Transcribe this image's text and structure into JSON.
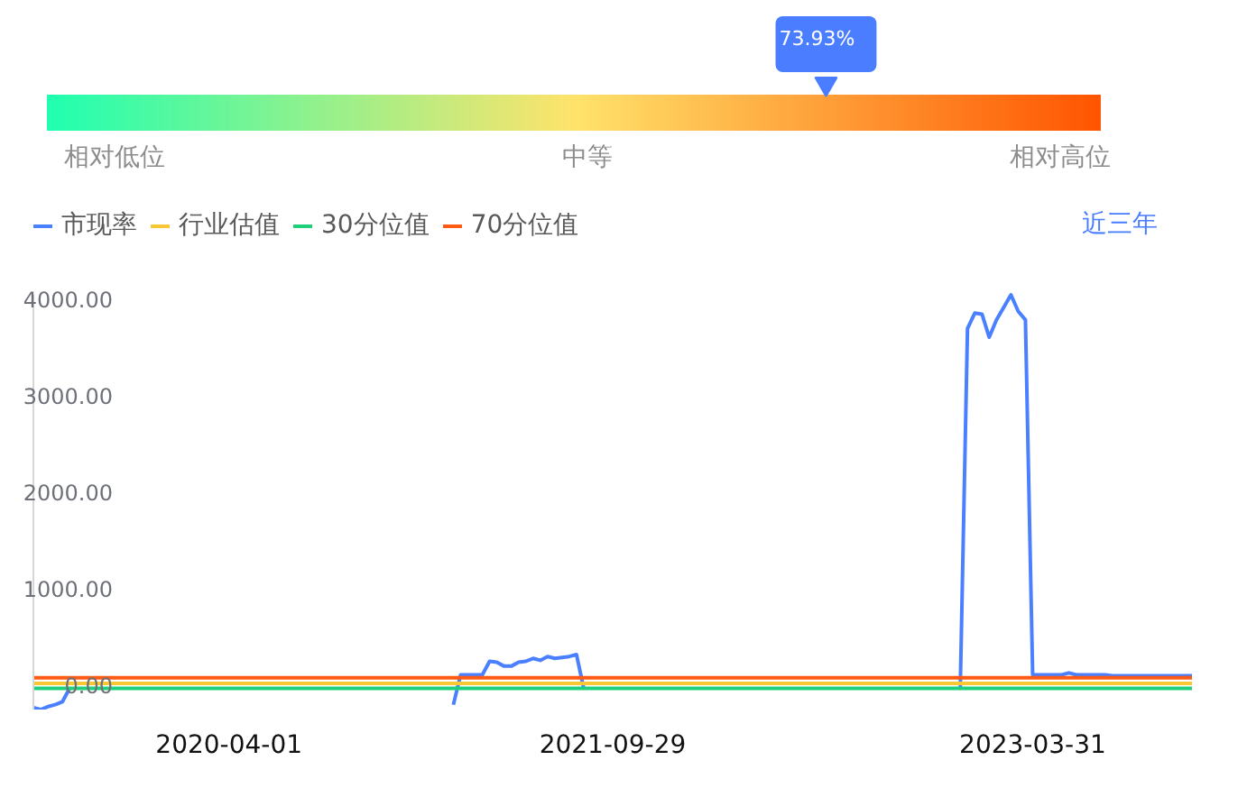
{
  "chart_data": [
    {
      "type": "other",
      "values": [
        73.93
      ],
      "value_labels": [
        "73.93%"
      ],
      "color": "#4a7dff",
      "annotations": [
        "相对低位",
        "中等",
        "相对高位"
      ]
    },
    {
      "type": "line",
      "categories": [
        null,
        null,
        null,
        null,
        null,
        null,
        null,
        null,
        null,
        null,
        null,
        null,
        null,
        null,
        null,
        null,
        null,
        null,
        null,
        null,
        null,
        null,
        null,
        null,
        null,
        null,
        null,
        "2020-04-01",
        null,
        null,
        null,
        null,
        null,
        null,
        null,
        null,
        null,
        null,
        null,
        null,
        null,
        null,
        null,
        null,
        null,
        null,
        null,
        null,
        null,
        null,
        null,
        null,
        null,
        null,
        null,
        null,
        null,
        null,
        null,
        null,
        null,
        null,
        null,
        null,
        null,
        null,
        null,
        null,
        null,
        null,
        null,
        null,
        null,
        null,
        null,
        null,
        null,
        null,
        null,
        null,
        "2021-09-29",
        null,
        null,
        null,
        null,
        null,
        null,
        null,
        null,
        null,
        null,
        null,
        null,
        null,
        null,
        null,
        null,
        null,
        null,
        null,
        null,
        null,
        null,
        null,
        null,
        null,
        null,
        null,
        null,
        null,
        null,
        null,
        null,
        null,
        null,
        null,
        null,
        null,
        null,
        null,
        null,
        null,
        null,
        null,
        null,
        null,
        null,
        null,
        null,
        null,
        null,
        null,
        null,
        null,
        null,
        null,
        null,
        null,
        "2023-03-31",
        null,
        null,
        null,
        null,
        null,
        null,
        null,
        null,
        null,
        null,
        null,
        null,
        null,
        null,
        null,
        null,
        null,
        null,
        null,
        null,
        null,
        null
      ],
      "series": [
        {
          "name": "市现率",
          "color": "#4a80ff",
          "values": [
            -230,
            -250,
            -220,
            -200,
            -170,
            -30,
            null,
            null,
            null,
            null,
            null,
            null,
            null,
            null,
            null,
            null,
            null,
            null,
            null,
            null,
            null,
            null,
            null,
            null,
            null,
            null,
            null,
            null,
            null,
            null,
            null,
            null,
            null,
            null,
            null,
            null,
            null,
            null,
            null,
            null,
            null,
            null,
            null,
            null,
            null,
            null,
            null,
            null,
            null,
            null,
            null,
            null,
            null,
            null,
            null,
            null,
            null,
            null,
            -200,
            110,
            110,
            110,
            110,
            250,
            240,
            200,
            200,
            240,
            250,
            280,
            260,
            300,
            280,
            290,
            300,
            320,
            -30,
            null,
            null,
            null,
            null,
            null,
            null,
            null,
            null,
            null,
            null,
            null,
            null,
            null,
            null,
            null,
            null,
            null,
            null,
            null,
            null,
            null,
            null,
            null,
            null,
            null,
            null,
            null,
            null,
            null,
            null,
            null,
            null,
            null,
            null,
            null,
            null,
            null,
            null,
            null,
            null,
            null,
            null,
            null,
            null,
            null,
            null,
            null,
            null,
            null,
            null,
            null,
            -30,
            3700,
            3860,
            3850,
            3610,
            3790,
            3920,
            4050,
            3880,
            3790,
            110,
            110,
            110,
            110,
            110,
            130,
            110,
            110,
            110,
            110,
            110,
            100,
            100,
            100,
            100,
            100,
            100,
            100,
            100,
            100,
            100,
            100,
            100
          ]
        },
        {
          "name": "行业估值",
          "color": "#f8c834",
          "values": [
            20,
            20,
            20,
            20,
            20,
            20,
            20,
            20,
            20,
            20,
            20,
            20,
            20,
            20,
            20,
            20,
            20,
            20,
            20,
            20,
            20,
            20,
            20,
            20,
            20,
            20,
            20,
            20,
            20,
            20,
            20,
            20,
            20,
            20,
            20,
            20,
            20,
            20,
            20,
            20,
            20,
            20,
            20,
            20,
            20,
            20,
            20,
            20,
            20,
            20,
            20,
            20,
            20,
            20,
            20,
            20,
            20,
            20,
            20,
            20,
            20,
            20,
            20,
            20,
            20,
            20,
            20,
            20,
            20,
            20,
            20,
            20,
            20,
            20,
            20,
            20,
            20,
            20,
            20,
            20,
            20,
            20,
            20,
            20,
            20,
            20,
            20,
            20,
            20,
            20,
            20,
            20,
            20,
            20,
            20,
            20,
            20,
            20,
            20,
            20,
            20,
            20,
            20,
            20,
            20,
            20,
            20,
            20,
            20,
            20,
            20,
            20,
            20,
            20,
            20,
            20,
            20,
            20,
            20,
            20,
            20,
            20,
            20,
            20,
            20,
            20,
            20,
            20,
            20,
            20,
            20,
            20,
            20,
            20,
            20,
            20,
            20,
            20,
            20,
            20,
            20,
            20,
            20,
            20,
            20,
            20,
            20,
            20,
            20,
            20,
            20,
            20,
            20,
            20,
            20,
            20,
            20,
            20,
            20,
            20,
            20
          ]
        },
        {
          "name": "30分位值",
          "color": "#1fd07a",
          "values": [
            -30,
            -30,
            -30,
            -30,
            -30,
            -30,
            -30,
            -30,
            -30,
            -30,
            -30,
            -30,
            -30,
            -30,
            -30,
            -30,
            -30,
            -30,
            -30,
            -30,
            -30,
            -30,
            -30,
            -30,
            -30,
            -30,
            -30,
            -30,
            -30,
            -30,
            -30,
            -30,
            -30,
            -30,
            -30,
            -30,
            -30,
            -30,
            -30,
            -30,
            -30,
            -30,
            -30,
            -30,
            -30,
            -30,
            -30,
            -30,
            -30,
            -30,
            -30,
            -30,
            -30,
            -30,
            -30,
            -30,
            -30,
            -30,
            -30,
            -30,
            -30,
            -30,
            -30,
            -30,
            -30,
            -30,
            -30,
            -30,
            -30,
            -30,
            -30,
            -30,
            -30,
            -30,
            -30,
            -30,
            -30,
            -30,
            -30,
            -30,
            -30,
            -30,
            -30,
            -30,
            -30,
            -30,
            -30,
            -30,
            -30,
            -30,
            -30,
            -30,
            -30,
            -30,
            -30,
            -30,
            -30,
            -30,
            -30,
            -30,
            -30,
            -30,
            -30,
            -30,
            -30,
            -30,
            -30,
            -30,
            -30,
            -30,
            -30,
            -30,
            -30,
            -30,
            -30,
            -30,
            -30,
            -30,
            -30,
            -30,
            -30,
            -30,
            -30,
            -30,
            -30,
            -30,
            -30,
            -30,
            -30,
            -30,
            -30,
            -30,
            -30,
            -30,
            -30,
            -30,
            -30,
            -30,
            -30,
            -30,
            -30,
            -30,
            -30,
            -30,
            -30,
            -30,
            -30,
            -30,
            -30,
            -30,
            -30,
            -30,
            -30,
            -30,
            -30,
            -30,
            -30,
            -30,
            -30,
            -30,
            -30
          ]
        },
        {
          "name": "70分位值",
          "color": "#ff5a14",
          "values": [
            80,
            80,
            80,
            80,
            80,
            80,
            80,
            80,
            80,
            80,
            80,
            80,
            80,
            80,
            80,
            80,
            80,
            80,
            80,
            80,
            80,
            80,
            80,
            80,
            80,
            80,
            80,
            80,
            80,
            80,
            80,
            80,
            80,
            80,
            80,
            80,
            80,
            80,
            80,
            80,
            80,
            80,
            80,
            80,
            80,
            80,
            80,
            80,
            80,
            80,
            80,
            80,
            80,
            80,
            80,
            80,
            80,
            80,
            80,
            80,
            80,
            80,
            80,
            80,
            80,
            80,
            80,
            80,
            80,
            80,
            80,
            80,
            80,
            80,
            80,
            80,
            80,
            80,
            80,
            80,
            80,
            80,
            80,
            80,
            80,
            80,
            80,
            80,
            80,
            80,
            80,
            80,
            80,
            80,
            80,
            80,
            80,
            80,
            80,
            80,
            80,
            80,
            80,
            80,
            80,
            80,
            80,
            80,
            80,
            80,
            80,
            80,
            80,
            80,
            80,
            80,
            80,
            80,
            80,
            80,
            80,
            80,
            80,
            80,
            80,
            80,
            80,
            80,
            80,
            80,
            80,
            80,
            80,
            80,
            80,
            80,
            80,
            80,
            80,
            80,
            80,
            80,
            80,
            80,
            80,
            80,
            80,
            80,
            80,
            80,
            80,
            80,
            80,
            80,
            80,
            80,
            80,
            80,
            80,
            80,
            80
          ]
        }
      ],
      "ylim": [
        -250,
        4050
      ],
      "yticks": [
        {
          "value": 0,
          "label": "0.00"
        },
        {
          "value": 1000,
          "label": "1000.00"
        },
        {
          "value": 2000,
          "label": "2000.00"
        },
        {
          "value": 3000,
          "label": "3000.00"
        },
        {
          "value": 4000,
          "label": "4000.00"
        }
      ],
      "legend": "top left",
      "annotations": [
        "近三年"
      ]
    }
  ]
}
